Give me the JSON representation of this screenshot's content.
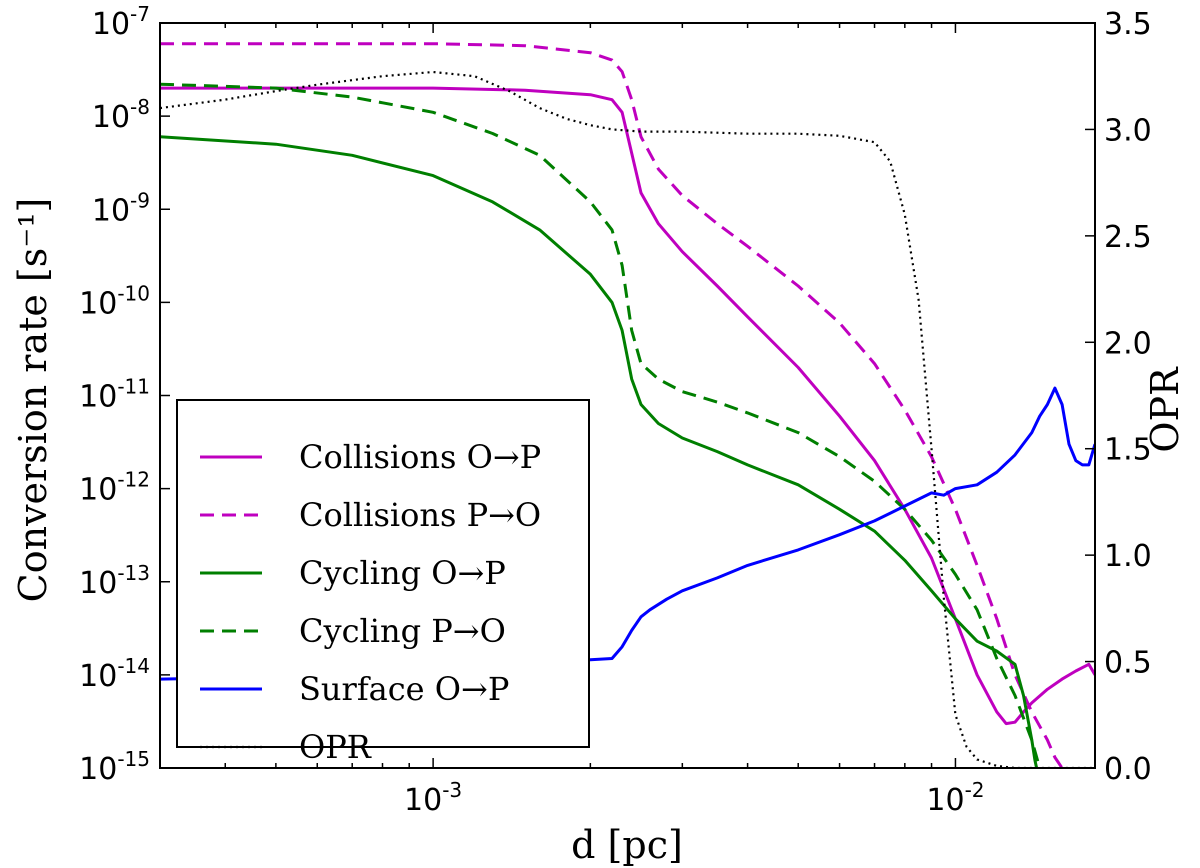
{
  "chart_data": {
    "type": "line",
    "xlabel": "d [pc]",
    "ylabel": "Conversion rate [s⁻¹]",
    "y2label": "OPR",
    "x_scale": "log",
    "y_scale": "log",
    "xlim": [
      0.0003,
      0.0185
    ],
    "ylim": [
      1e-15,
      1e-07
    ],
    "y2lim": [
      0.0,
      3.5
    ],
    "x_ticks": [
      0.001,
      0.01
    ],
    "x_tick_labels": [
      {
        "base": "10",
        "exp": "-3"
      },
      {
        "base": "10",
        "exp": "-2"
      }
    ],
    "y_ticks": [
      1e-07,
      1e-08,
      1e-09,
      1e-10,
      1e-11,
      1e-12,
      1e-13,
      1e-14,
      1e-15
    ],
    "y_tick_labels": [
      {
        "base": "10",
        "exp": "-7"
      },
      {
        "base": "10",
        "exp": "-8"
      },
      {
        "base": "10",
        "exp": "-9"
      },
      {
        "base": "10",
        "exp": "-10"
      },
      {
        "base": "10",
        "exp": "-11"
      },
      {
        "base": "10",
        "exp": "-12"
      },
      {
        "base": "10",
        "exp": "-13"
      },
      {
        "base": "10",
        "exp": "-14"
      },
      {
        "base": "10",
        "exp": "-15"
      }
    ],
    "y2_ticks": [
      0.0,
      0.5,
      1.0,
      1.5,
      2.0,
      2.5,
      3.0,
      3.5
    ],
    "y2_tick_labels": [
      "0.0",
      "0.5",
      "1.0",
      "1.5",
      "2.0",
      "2.5",
      "3.0",
      "3.5"
    ],
    "grid": false,
    "legend_position": "lower-left",
    "series": [
      {
        "name": "Collisions O→P",
        "color": "#bf00bf",
        "style": "solid",
        "axis": "left",
        "x": [
          0.0003,
          0.0006,
          0.001,
          0.0015,
          0.002,
          0.0022,
          0.0023,
          0.0024,
          0.0025,
          0.0027,
          0.003,
          0.0035,
          0.004,
          0.005,
          0.006,
          0.007,
          0.008,
          0.009,
          0.01,
          0.011,
          0.012,
          0.0125,
          0.013,
          0.0135,
          0.014,
          0.015,
          0.016,
          0.017,
          0.018,
          0.0185
        ],
        "y": [
          2e-08,
          2e-08,
          2e-08,
          1.9e-08,
          1.7e-08,
          1.5e-08,
          1.1e-08,
          4e-09,
          1.5e-09,
          7e-10,
          3.5e-10,
          1.5e-10,
          7e-11,
          2e-11,
          6e-12,
          2e-12,
          6e-13,
          1.8e-13,
          4e-14,
          1e-14,
          4e-15,
          3e-15,
          3.1e-15,
          4e-15,
          5e-15,
          7e-15,
          9e-15,
          1.1e-14,
          1.3e-14,
          1e-14
        ]
      },
      {
        "name": "Collisions P→O",
        "color": "#bf00bf",
        "style": "dashed",
        "axis": "left",
        "x": [
          0.0003,
          0.0006,
          0.001,
          0.0015,
          0.002,
          0.0022,
          0.0023,
          0.0024,
          0.0025,
          0.0027,
          0.003,
          0.0035,
          0.004,
          0.005,
          0.006,
          0.007,
          0.008,
          0.009,
          0.01,
          0.011,
          0.012,
          0.013,
          0.014,
          0.015,
          0.0155,
          0.016
        ],
        "y": [
          6e-08,
          6e-08,
          6e-08,
          5.7e-08,
          4.8e-08,
          4e-08,
          3e-08,
          1.5e-08,
          6e-09,
          2.7e-09,
          1.4e-09,
          7e-10,
          4e-10,
          1.5e-10,
          6e-11,
          2.2e-11,
          7e-12,
          2.2e-12,
          6e-13,
          1.5e-13,
          4e-14,
          1e-14,
          4e-15,
          2e-15,
          1.3e-15,
          1e-15
        ]
      },
      {
        "name": "Cycling O→P",
        "color": "#007f00",
        "style": "solid",
        "axis": "left",
        "x": [
          0.0003,
          0.0005,
          0.0007,
          0.001,
          0.0013,
          0.0016,
          0.002,
          0.0022,
          0.0023,
          0.0024,
          0.0025,
          0.0027,
          0.003,
          0.0035,
          0.004,
          0.005,
          0.006,
          0.007,
          0.008,
          0.009,
          0.01,
          0.011,
          0.012,
          0.013,
          0.0135,
          0.014,
          0.0142,
          0.0143
        ],
        "y": [
          6e-09,
          5e-09,
          3.8e-09,
          2.3e-09,
          1.2e-09,
          6e-10,
          2e-10,
          1e-10,
          5e-11,
          1.5e-11,
          8e-12,
          5e-12,
          3.5e-12,
          2.5e-12,
          1.8e-12,
          1.1e-12,
          6e-13,
          3.5e-13,
          1.7e-13,
          8e-14,
          4e-14,
          2.3e-14,
          1.8e-14,
          1.3e-14,
          6e-15,
          2e-15,
          1.2e-15,
          1e-15
        ]
      },
      {
        "name": "Cycling P→O",
        "color": "#007f00",
        "style": "dashed",
        "axis": "left",
        "x": [
          0.0003,
          0.0005,
          0.0007,
          0.001,
          0.0013,
          0.0016,
          0.002,
          0.0022,
          0.0023,
          0.0024,
          0.0025,
          0.0027,
          0.003,
          0.0035,
          0.004,
          0.005,
          0.006,
          0.007,
          0.008,
          0.009,
          0.01,
          0.011,
          0.012,
          0.013,
          0.014,
          0.0145
        ],
        "y": [
          2.2e-08,
          2e-08,
          1.6e-08,
          1.1e-08,
          6.5e-09,
          3.8e-09,
          1.2e-09,
          6e-10,
          2.5e-10,
          5e-11,
          2.2e-11,
          1.5e-11,
          1.1e-11,
          8.5e-12,
          6.5e-12,
          4e-12,
          2.2e-12,
          1.2e-12,
          6e-13,
          2.8e-13,
          1.2e-13,
          5e-14,
          1.5e-14,
          6e-15,
          2e-15,
          1e-15
        ]
      },
      {
        "name": "Surface O→P",
        "color": "#0000ff",
        "style": "solid",
        "axis": "left",
        "x": [
          0.0003,
          0.0005,
          0.0007,
          0.001,
          0.0013,
          0.0016,
          0.002,
          0.0022,
          0.0023,
          0.0024,
          0.0025,
          0.0026,
          0.0028,
          0.003,
          0.0035,
          0.004,
          0.005,
          0.006,
          0.007,
          0.008,
          0.009,
          0.0095,
          0.01,
          0.011,
          0.012,
          0.013,
          0.014,
          0.0145,
          0.015,
          0.0155,
          0.016,
          0.0165,
          0.017,
          0.0175,
          0.018,
          0.0185
        ],
        "y": [
          9e-15,
          9.5e-15,
          1.05e-14,
          1.15e-14,
          1.25e-14,
          1.35e-14,
          1.45e-14,
          1.5e-14,
          2e-14,
          3e-14,
          4.2e-14,
          5e-14,
          6.5e-14,
          8e-14,
          1.1e-13,
          1.5e-13,
          2.2e-13,
          3.2e-13,
          4.5e-13,
          6.5e-13,
          9e-13,
          8.5e-13,
          1e-12,
          1.1e-12,
          1.5e-12,
          2.3e-12,
          4e-12,
          6e-12,
          8e-12,
          1.2e-11,
          8e-12,
          3e-12,
          2e-12,
          1.8e-12,
          1.8e-12,
          3e-12
        ]
      },
      {
        "name": "OPR",
        "color": "#000000",
        "style": "dotted",
        "axis": "right",
        "x": [
          0.0003,
          0.0004,
          0.0005,
          0.0006,
          0.0008,
          0.001,
          0.0012,
          0.0014,
          0.0016,
          0.0018,
          0.002,
          0.0022,
          0.0025,
          0.003,
          0.004,
          0.005,
          0.006,
          0.007,
          0.0075,
          0.008,
          0.0085,
          0.009,
          0.0095,
          0.01,
          0.0105,
          0.011,
          0.012,
          0.013,
          0.014,
          0.016,
          0.0185
        ],
        "y": [
          3.1,
          3.14,
          3.18,
          3.21,
          3.25,
          3.27,
          3.25,
          3.18,
          3.1,
          3.05,
          3.02,
          3.0,
          2.99,
          2.99,
          2.98,
          2.98,
          2.97,
          2.94,
          2.85,
          2.6,
          2.2,
          1.5,
          0.8,
          0.25,
          0.1,
          0.04,
          0.01,
          0.0,
          0.0,
          0.0,
          0.0
        ]
      }
    ]
  }
}
